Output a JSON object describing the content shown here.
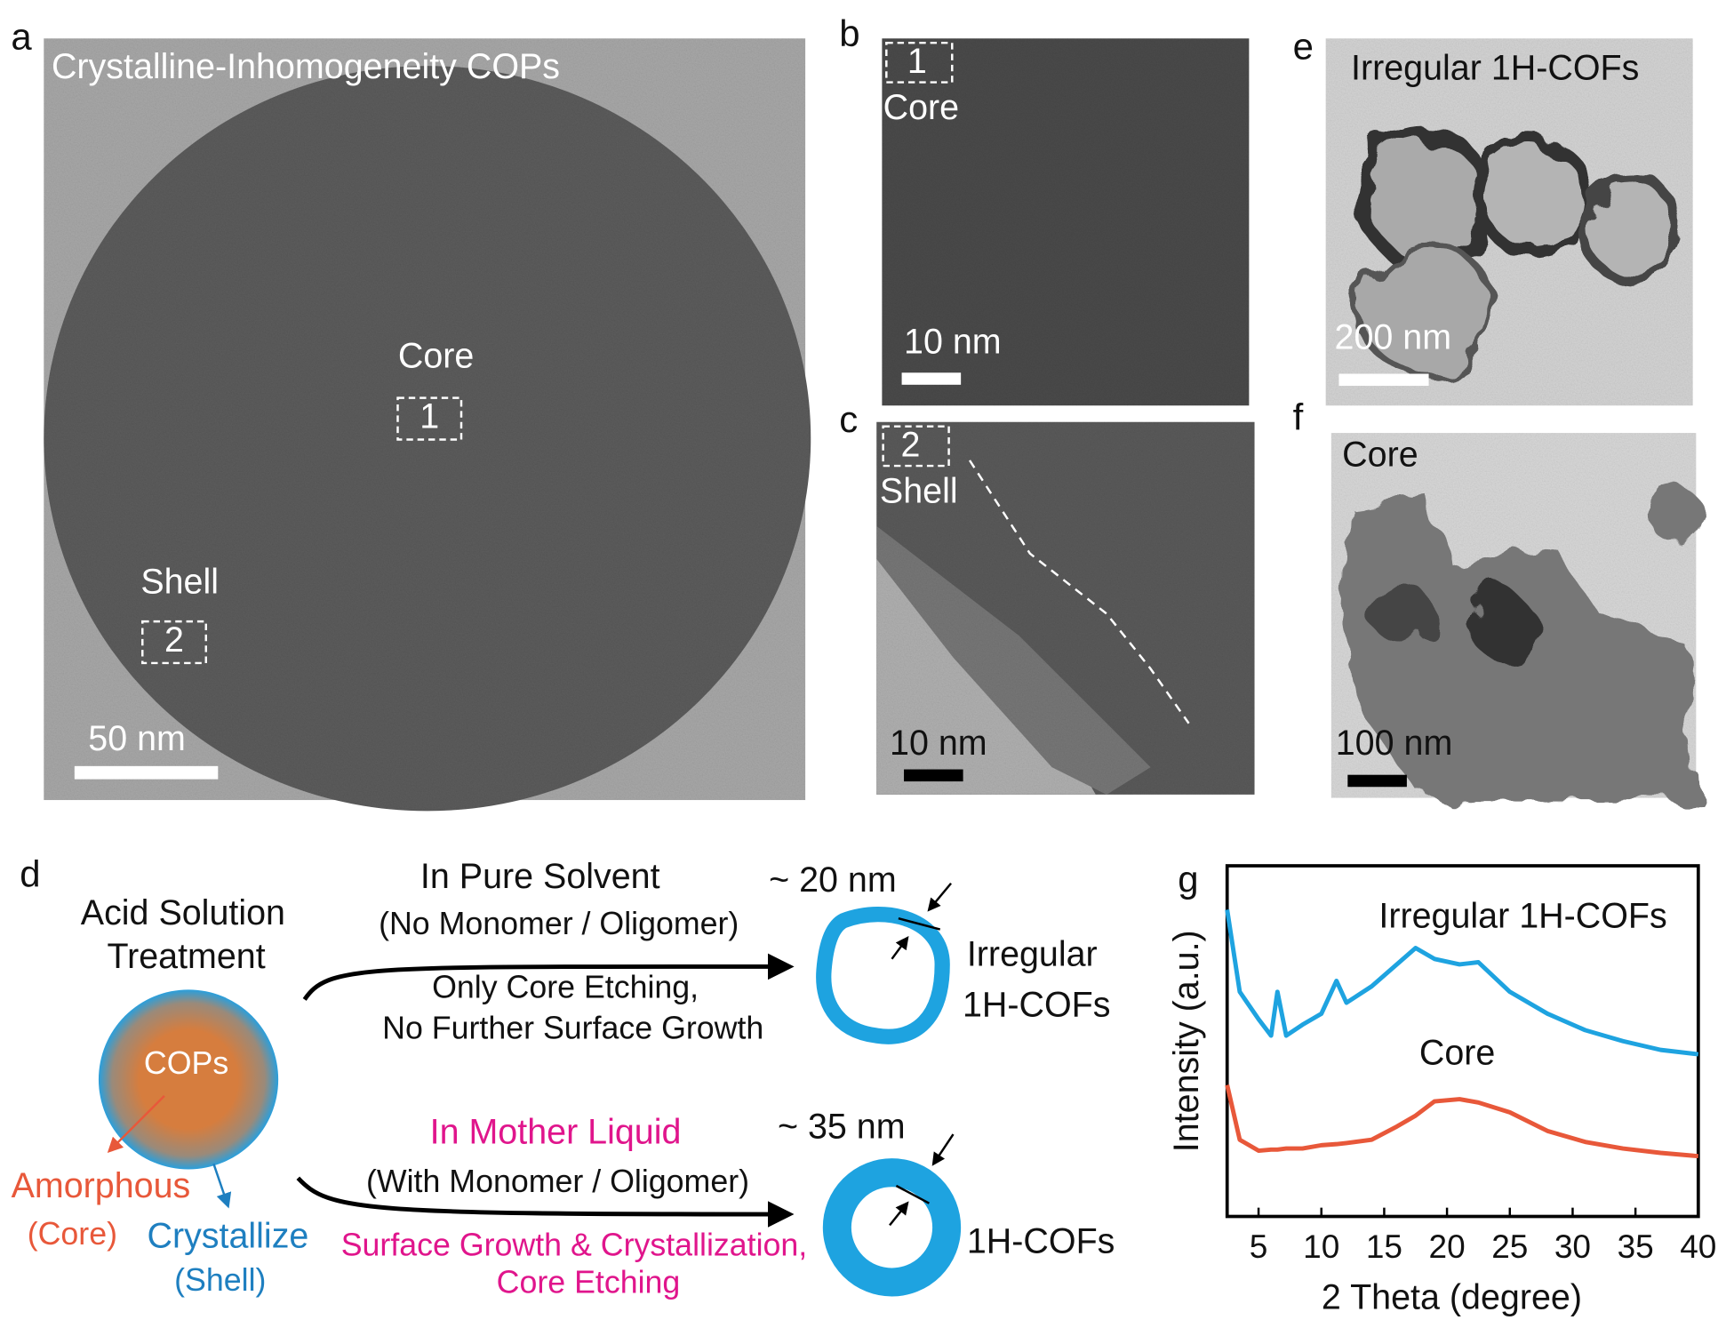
{
  "panels": {
    "a": {
      "letter": "a",
      "title": "Crystalline-Inhomogeneity COPs",
      "core": "Core",
      "box1": "1",
      "shell": "Shell",
      "box2": "2",
      "scale": "50 nm"
    },
    "b": {
      "letter": "b",
      "box": "1",
      "label": "Core",
      "scale": "10 nm"
    },
    "c": {
      "letter": "c",
      "box": "2",
      "label": "Shell",
      "scale": "10 nm"
    },
    "e": {
      "letter": "e",
      "label": "Irregular 1H-COFs",
      "scale": "200 nm"
    },
    "f": {
      "letter": "f",
      "label": "Core",
      "scale": "100 nm"
    },
    "d": {
      "letter": "d",
      "treatment": [
        "Acid Solution",
        "Treatment"
      ],
      "particle": "COPs",
      "amorphous": "Amorphous",
      "amorphous_part": "(Core)",
      "crystallize": "Crystallize",
      "crystallize_part": "(Shell)",
      "top": {
        "condition": "In Pure Solvent",
        "detail": "(No Monomer / Oligomer)",
        "process": [
          "Only Core Etching,",
          "No Further Surface Growth"
        ],
        "thickness": "~ 20 nm",
        "product": [
          "Irregular",
          "1H-COFs"
        ]
      },
      "bottom": {
        "condition": "In Mother Liquid",
        "detail": "(With Monomer / Oligomer)",
        "process": [
          "Surface Growth & Crystallization,",
          "Core Etching"
        ],
        "thickness": "~ 35 nm",
        "product": [
          "1H-COFs"
        ]
      }
    },
    "g": {
      "letter": "g",
      "chart": {
        "type": "line",
        "x_label": "2 Theta (degree)",
        "y_label": "Intensity (a.u.)",
        "x": [
          2.5,
          3.5,
          5,
          6,
          6.5,
          7.2,
          8.5,
          10,
          11.2,
          12,
          14,
          16,
          17.5,
          19,
          21,
          22.5,
          25,
          28,
          31,
          34,
          37,
          40
        ],
        "series": [
          {
            "name": "Irregular 1H-COFs",
            "color": "#1ea3e0",
            "values": [
              280,
              205,
              180,
              165,
              205,
              165,
              175,
              185,
              215,
              195,
              210,
              230,
              245,
              235,
              230,
              232,
              205,
              185,
              170,
              160,
              152,
              148
            ]
          },
          {
            "name": "Core",
            "color": "#e8583a",
            "values": [
              120,
              70,
              60,
              61,
              61,
              62,
              62,
              65,
              66,
              67,
              70,
              82,
              92,
              105,
              107,
              104,
              95,
              78,
              68,
              62,
              58,
              55
            ]
          }
        ],
        "xlim": [
          2.5,
          40
        ],
        "xticks": [
          5,
          10,
          15,
          20,
          25,
          30,
          35,
          40
        ],
        "ylim": [
          0,
          320
        ]
      }
    }
  }
}
